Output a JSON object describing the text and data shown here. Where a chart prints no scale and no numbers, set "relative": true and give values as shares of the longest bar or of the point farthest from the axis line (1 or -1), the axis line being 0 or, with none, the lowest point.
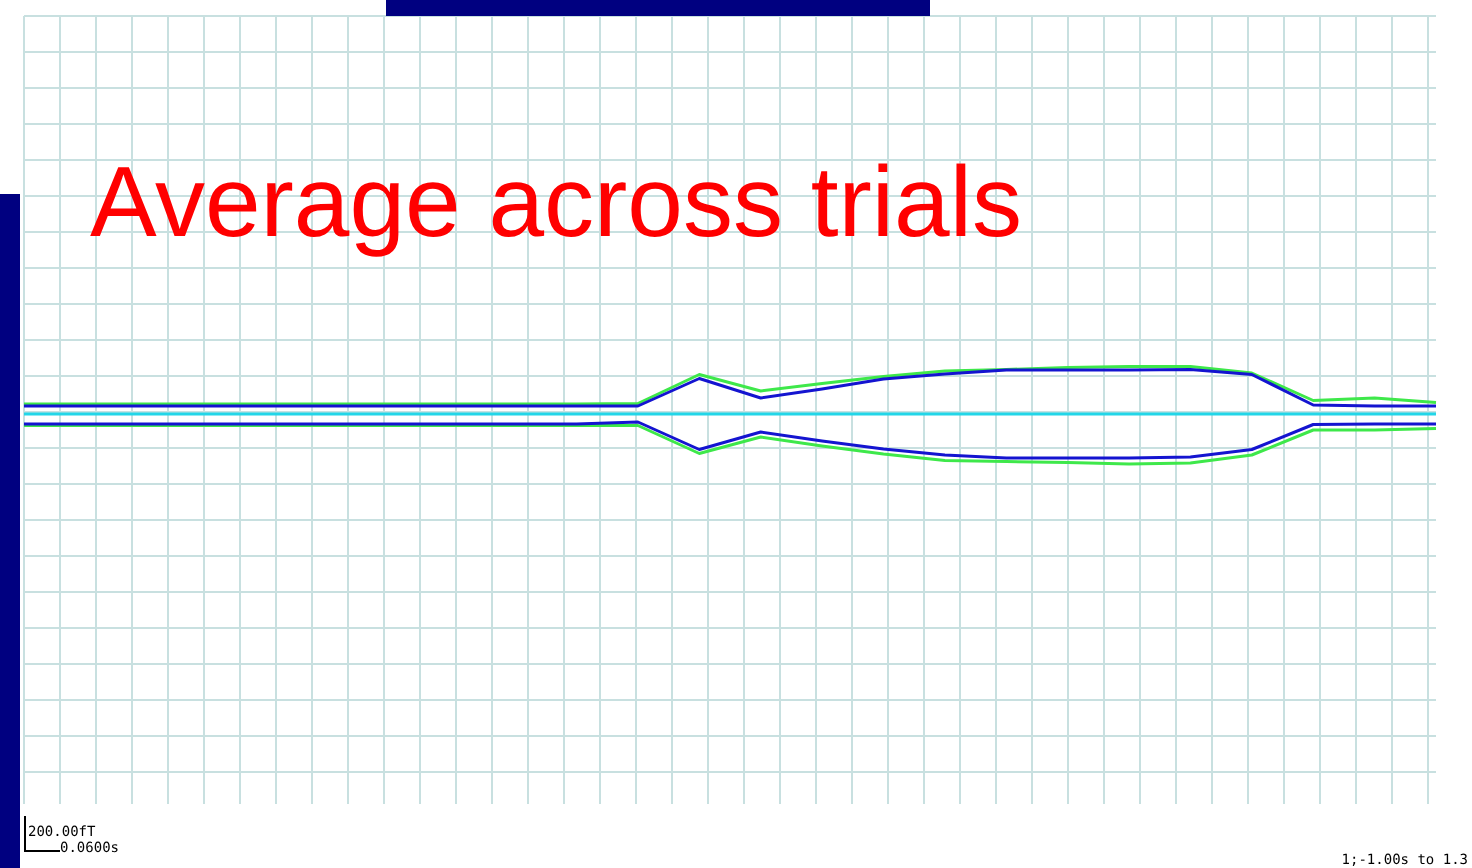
{
  "chart_data": {
    "type": "line",
    "title": "Average across trials",
    "relative": true,
    "grid": true,
    "categories": [
      null,
      null,
      null,
      null,
      null,
      null,
      null,
      null,
      null,
      null,
      null,
      null,
      null,
      null,
      null,
      null,
      null,
      null,
      null,
      null,
      null,
      null,
      null,
      null
    ],
    "annotations": [
      "200.00fT",
      "0.0600s",
      "1;-1.00s to 1.3"
    ],
    "series": [
      {
        "color": "#3ee84a",
        "values": [
          0.2,
          0.2,
          0.2,
          0.2,
          0.2,
          0.2,
          0.2,
          0.2,
          0.2,
          0.2,
          0.21,
          0.79,
          0.46,
          0.61,
          0.75,
          0.86,
          0.89,
          0.93,
          0.95,
          0.95,
          0.82,
          0.27,
          0.32,
          0.23
        ]
      },
      {
        "color": "#3ee84a",
        "values": [
          -0.23,
          -0.23,
          -0.23,
          -0.23,
          -0.23,
          -0.23,
          -0.23,
          -0.23,
          -0.23,
          -0.23,
          -0.23,
          -0.79,
          -0.46,
          -0.64,
          -0.8,
          -0.93,
          -0.95,
          -0.97,
          -1,
          -0.98,
          -0.82,
          -0.32,
          -0.32,
          -0.29
        ]
      },
      {
        "color": "#1414d0",
        "values": [
          0.16,
          0.16,
          0.16,
          0.16,
          0.16,
          0.16,
          0.16,
          0.16,
          0.16,
          0.16,
          0.16,
          0.71,
          0.32,
          0.5,
          0.7,
          0.8,
          0.88,
          0.88,
          0.88,
          0.89,
          0.79,
          0.18,
          0.16,
          0.16
        ]
      },
      {
        "color": "#1414d0",
        "values": [
          -0.2,
          -0.2,
          -0.2,
          -0.2,
          -0.2,
          -0.2,
          -0.2,
          -0.2,
          -0.2,
          -0.2,
          -0.16,
          -0.71,
          -0.36,
          -0.54,
          -0.7,
          -0.82,
          -0.88,
          -0.88,
          -0.88,
          -0.86,
          -0.71,
          -0.21,
          -0.2,
          -0.2
        ]
      },
      {
        "color": "#22d6e8",
        "values": [
          0,
          0,
          0,
          0,
          0,
          0,
          0,
          0,
          0,
          0,
          0,
          0,
          0,
          0,
          0,
          0,
          0,
          0,
          0,
          0,
          0,
          0,
          0,
          0
        ]
      }
    ]
  }
}
